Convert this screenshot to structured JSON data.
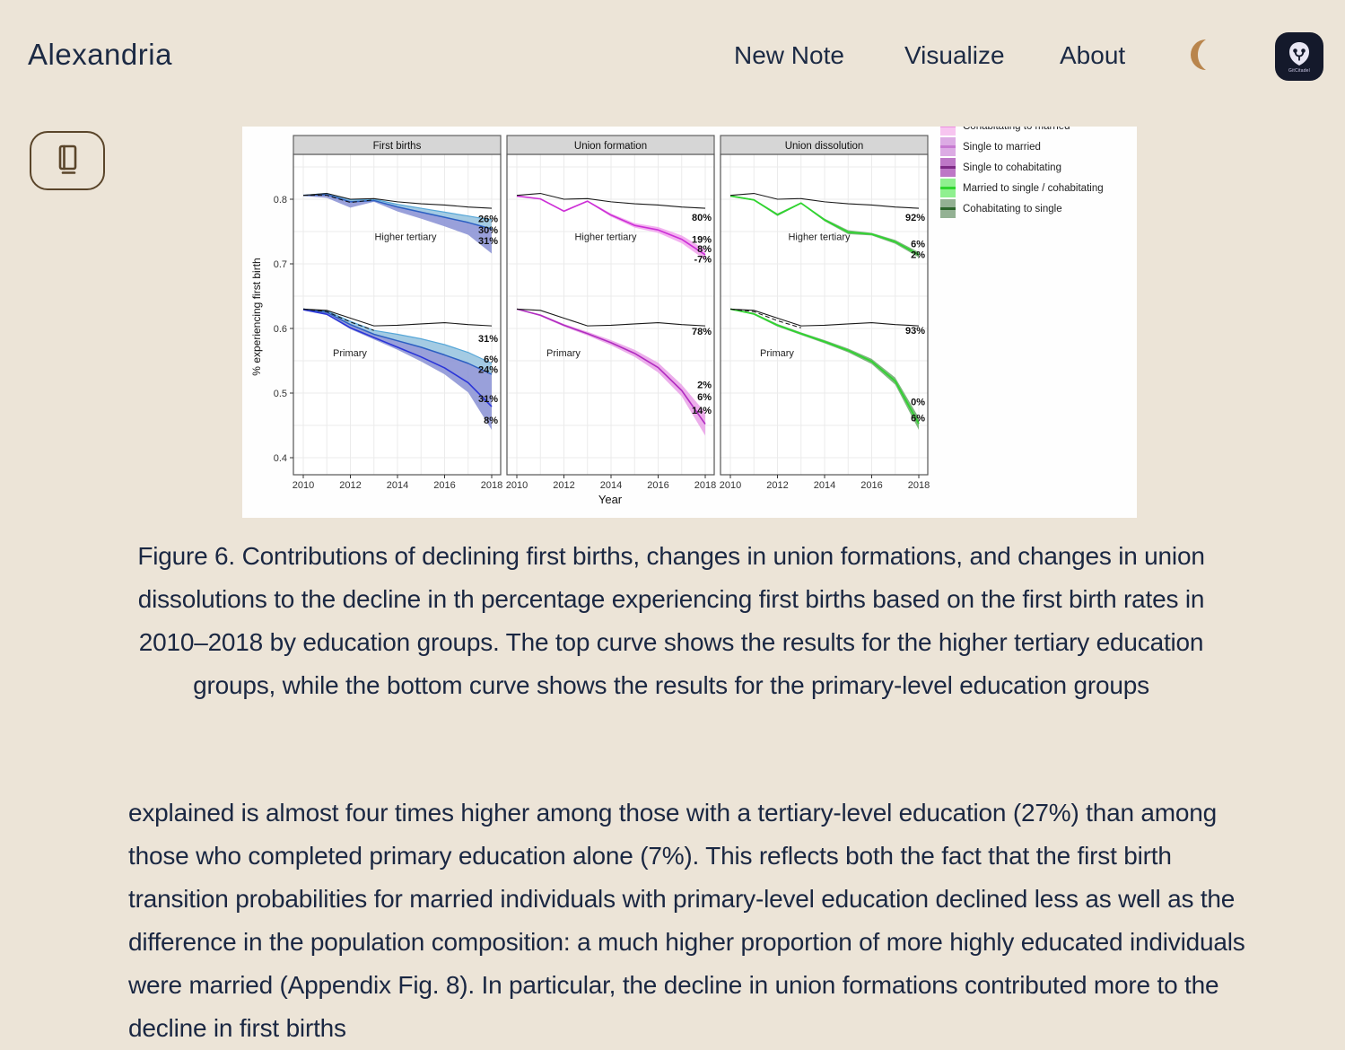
{
  "header": {
    "title": "Alexandria",
    "nav": [
      {
        "label": "New Note"
      },
      {
        "label": "Visualize"
      },
      {
        "label": "About"
      }
    ],
    "logo_text": "GitCitadel"
  },
  "figure": {
    "caption": "Figure 6. Contributions of declining first births, changes in union formations, and changes in union dissolutions to the decline in th percentage experiencing first births based on the first birth rates in 2010–2018 by education groups. The top curve shows the results for the higher tertiary education groups, while the bottom curve shows the results for the primary-level education groups"
  },
  "article": {
    "paragraph": "explained is almost four times higher among those with a tertiary-level education (27%) than among those who completed primary education alone (7%). This reflects both the fact that the first birth transition probabilities for married individuals with primary-level education declined less as well as the difference in the population composition: a much higher proportion of more highly educated individuals were married (Appendix Fig. 8). In particular, the decline in union formations contributed more to the decline in first births"
  },
  "chart_data": {
    "type": "area",
    "x": [
      2010,
      2011,
      2012,
      2013,
      2014,
      2015,
      2016,
      2017,
      2018
    ],
    "x_ticks": [
      2010,
      2012,
      2014,
      2016,
      2018
    ],
    "xlabel": "Year",
    "ylabel": "% experiencing first birth",
    "y_ticks": [
      0.8,
      0.7,
      0.6,
      0.5,
      0.4
    ],
    "ylim": [
      0.4,
      0.85
    ],
    "panels": [
      {
        "title": "First births",
        "groups": [
          {
            "name": "Higher tertiary",
            "name_dx": 125,
            "name_v": 0.737,
            "ref": [
              0.806,
              0.809,
              0.8,
              0.801,
              0.796,
              0.793,
              0.791,
              0.788,
              0.786
            ],
            "dash": [
              0.806,
              0.806,
              0.795,
              0.799
            ],
            "layers": [
              {
                "type": "band",
                "fill": "#9fc8e2",
                "opacity": 0.95,
                "upper": [
                  0.806,
                  0.809,
                  0.799,
                  0.8,
                  0.792,
                  0.786,
                  0.78,
                  0.774,
                  0.768
                ],
                "lower": [
                  0.806,
                  0.807,
                  0.796,
                  0.798,
                  0.788,
                  0.78,
                  0.772,
                  0.764,
                  0.754
                ]
              },
              {
                "type": "band",
                "fill": "#8e96d6",
                "opacity": 0.9,
                "upper": [
                  0.806,
                  0.807,
                  0.796,
                  0.798,
                  0.788,
                  0.78,
                  0.772,
                  0.764,
                  0.754
                ],
                "lower": [
                  0.805,
                  0.802,
                  0.787,
                  0.796,
                  0.781,
                  0.77,
                  0.758,
                  0.745,
                  0.716
                ]
              },
              {
                "type": "line",
                "color": "#57a7d8",
                "width": 1.2,
                "values": [
                  0.806,
                  0.809,
                  0.799,
                  0.8,
                  0.792,
                  0.786,
                  0.78,
                  0.774,
                  0.768
                ]
              },
              {
                "type": "line",
                "color": "#2c5fc2",
                "width": 1.5,
                "values": [
                  0.806,
                  0.807,
                  0.796,
                  0.798,
                  0.788,
                  0.78,
                  0.772,
                  0.764,
                  0.754
                ]
              }
            ],
            "labels": [
              {
                "text": "26%",
                "v": 0.77
              },
              {
                "text": "30%",
                "v": 0.7525
              },
              {
                "text": "31%",
                "v": 0.736
              }
            ]
          },
          {
            "name": "Primary",
            "name_dx": 63,
            "name_v": 0.557,
            "ref": [
              0.63,
              0.628,
              0.616,
              0.604,
              0.605,
              0.607,
              0.609,
              0.606,
              0.604
            ],
            "dash": [
              0.63,
              0.626,
              0.61,
              0.597
            ],
            "layers": [
              {
                "type": "band",
                "fill": "#9fc8e2",
                "opacity": 0.95,
                "upper": [
                  0.63,
                  0.627,
                  0.611,
                  0.597,
                  0.591,
                  0.584,
                  0.575,
                  0.563,
                  0.546
                ],
                "lower": [
                  0.63,
                  0.625,
                  0.606,
                  0.591,
                  0.581,
                  0.571,
                  0.559,
                  0.546,
                  0.529
                ]
              },
              {
                "type": "band",
                "fill": "#8e96d6",
                "opacity": 0.9,
                "upper": [
                  0.63,
                  0.625,
                  0.606,
                  0.591,
                  0.581,
                  0.571,
                  0.559,
                  0.546,
                  0.529
                ],
                "lower": [
                  0.629,
                  0.621,
                  0.599,
                  0.583,
                  0.567,
                  0.549,
                  0.529,
                  0.501,
                  0.443
                ]
              },
              {
                "type": "line",
                "color": "#57a7d8",
                "width": 1.2,
                "values": [
                  0.63,
                  0.627,
                  0.611,
                  0.597,
                  0.591,
                  0.584,
                  0.575,
                  0.563,
                  0.546
                ]
              },
              {
                "type": "line",
                "color": "#2c5fc2",
                "width": 1.5,
                "values": [
                  0.63,
                  0.625,
                  0.606,
                  0.591,
                  0.581,
                  0.571,
                  0.559,
                  0.546,
                  0.529
                ]
              },
              {
                "type": "line",
                "color": "#2a35d8",
                "width": 1.6,
                "values": [
                  0.629,
                  0.622,
                  0.601,
                  0.586,
                  0.571,
                  0.556,
                  0.539,
                  0.516,
                  0.479
                ]
              }
            ],
            "labels": [
              {
                "text": "31%",
                "v": 0.585
              },
              {
                "text": "6%",
                "v": 0.5525
              },
              {
                "text": "24%",
                "v": 0.537
              },
              {
                "text": "31%",
                "v": 0.492
              },
              {
                "text": "8%",
                "v": 0.458
              }
            ]
          }
        ]
      },
      {
        "title": "Union formation",
        "groups": [
          {
            "name": "Higher tertiary",
            "name_dx": 110,
            "name_v": 0.737,
            "ref": [
              0.806,
              0.809,
              0.8,
              0.801,
              0.796,
              0.793,
              0.791,
              0.788,
              0.786
            ],
            "dash": null,
            "layers": [
              {
                "type": "band",
                "fill": "#f2a7ee",
                "opacity": 0.9,
                "upper": [
                  0.805,
                  0.801,
                  0.783,
                  0.798,
                  0.778,
                  0.763,
                  0.757,
                  0.744,
                  0.722
                ],
                "lower": [
                  0.805,
                  0.8,
                  0.78,
                  0.796,
                  0.773,
                  0.756,
                  0.748,
                  0.732,
                  0.706
                ]
              },
              {
                "type": "line",
                "color": "#cc2fd6",
                "width": 1.6,
                "values": [
                  0.805,
                  0.8005,
                  0.7815,
                  0.797,
                  0.7755,
                  0.7595,
                  0.7525,
                  0.738,
                  0.714
                ]
              }
            ],
            "labels": [
              {
                "text": "80%",
                "v": 0.772
              },
              {
                "text": "19%",
                "v": 0.738
              },
              {
                "text": "8%",
                "v": 0.7235
              },
              {
                "text": "-7%",
                "v": 0.7075
              }
            ]
          },
          {
            "name": "Primary",
            "name_dx": 63,
            "name_v": 0.557,
            "ref": [
              0.63,
              0.628,
              0.616,
              0.604,
              0.605,
              0.607,
              0.609,
              0.606,
              0.604
            ],
            "dash": null,
            "layers": [
              {
                "type": "band",
                "fill": "#e9a0e8",
                "opacity": 0.85,
                "upper": [
                  0.63,
                  0.622,
                  0.607,
                  0.595,
                  0.582,
                  0.567,
                  0.547,
                  0.513,
                  0.47
                ],
                "lower": [
                  0.63,
                  0.619,
                  0.603,
                  0.589,
                  0.574,
                  0.556,
                  0.532,
                  0.495,
                  0.434
                ]
              },
              {
                "type": "line",
                "color": "#b02cc0",
                "width": 1.6,
                "values": [
                  0.63,
                  0.6205,
                  0.605,
                  0.592,
                  0.578,
                  0.5615,
                  0.5395,
                  0.504,
                  0.452
                ]
              }
            ],
            "labels": [
              {
                "text": "78%",
                "v": 0.596
              },
              {
                "text": "2%",
                "v": 0.5135
              },
              {
                "text": "6%",
                "v": 0.4945
              },
              {
                "text": "14%",
                "v": 0.4735
              }
            ]
          }
        ]
      },
      {
        "title": "Union dissolution",
        "groups": [
          {
            "name": "Higher tertiary",
            "name_dx": 110,
            "name_v": 0.737,
            "ref": [
              0.806,
              0.809,
              0.8,
              0.801,
              0.796,
              0.793,
              0.791,
              0.788,
              0.786
            ],
            "dash": null,
            "layers": [
              {
                "type": "band",
                "fill": "#6fae6f",
                "opacity": 0.9,
                "upper": [
                  0.806,
                  0.8,
                  0.778,
                  0.795,
                  0.77,
                  0.752,
                  0.748,
                  0.737,
                  0.718
                ],
                "lower": [
                  0.804,
                  0.798,
                  0.774,
                  0.793,
                  0.766,
                  0.746,
                  0.744,
                  0.731,
                  0.71
                ]
              },
              {
                "type": "line",
                "color": "#2fd52f",
                "width": 1.8,
                "values": [
                  0.805,
                  0.799,
                  0.776,
                  0.794,
                  0.768,
                  0.749,
                  0.746,
                  0.734,
                  0.714
                ]
              }
            ],
            "labels": [
              {
                "text": "92%",
                "v": 0.772
              },
              {
                "text": "6%",
                "v": 0.731
              },
              {
                "text": "2%",
                "v": 0.7145
              }
            ]
          },
          {
            "name": "Primary",
            "name_dx": 63,
            "name_v": 0.557,
            "ref": [
              0.63,
              0.628,
              0.616,
              0.604,
              0.605,
              0.607,
              0.609,
              0.606,
              0.604
            ],
            "dash": [
              0.63,
              0.626,
              0.612,
              0.601
            ],
            "layers": [
              {
                "type": "band",
                "fill": "#6fae6f",
                "opacity": 0.9,
                "upper": [
                  0.63,
                  0.624,
                  0.607,
                  0.594,
                  0.582,
                  0.569,
                  0.553,
                  0.524,
                  0.462
                ],
                "lower": [
                  0.63,
                  0.621,
                  0.603,
                  0.59,
                  0.577,
                  0.563,
                  0.545,
                  0.513,
                  0.443
                ]
              },
              {
                "type": "line",
                "color": "#2fd52f",
                "width": 1.8,
                "values": [
                  0.63,
                  0.6225,
                  0.605,
                  0.592,
                  0.5795,
                  0.566,
                  0.549,
                  0.5185,
                  0.4525
                ]
              }
            ],
            "labels": [
              {
                "text": "93%",
                "v": 0.597
              },
              {
                "text": "0%",
                "v": 0.487
              },
              {
                "text": "6%",
                "v": 0.4615
              }
            ]
          }
        ]
      }
    ],
    "legend": {
      "position": "right-top",
      "items": [
        {
          "label": "Cohabitating to married",
          "fill": "#f7c5f0",
          "line": "#ee8fe2",
          "clipped": true
        },
        {
          "label": "Single to married",
          "fill": "#dcabe4",
          "line": "#c77ad1",
          "clipped": false
        },
        {
          "label": "Single to cohabitating",
          "fill": "#bd77c6",
          "line": "#7d2a85",
          "clipped": false
        },
        {
          "label": "Married to single / cohabitating",
          "fill": "#8ff08f",
          "line": "#2fd52f",
          "clipped": false
        },
        {
          "label": "Cohabitating to single",
          "fill": "#93b193",
          "line": "#2c662c",
          "clipped": false
        }
      ]
    }
  }
}
